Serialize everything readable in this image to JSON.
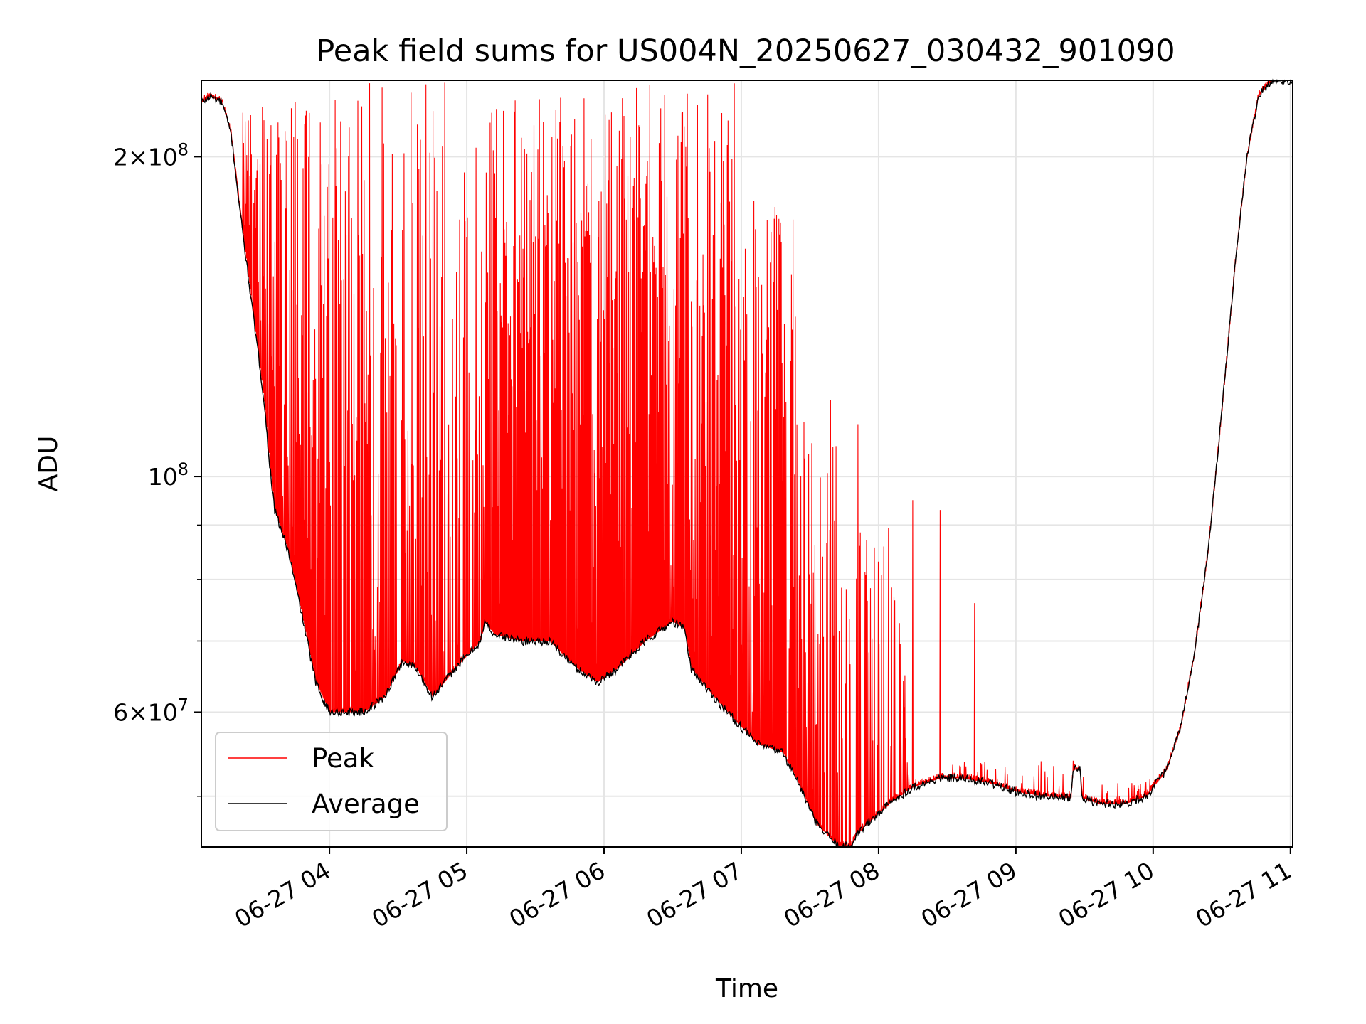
{
  "chart_data": {
    "type": "line",
    "title": "Peak field sums for US004N_20250627_030432_901090",
    "xlabel": "Time",
    "ylabel": "ADU",
    "y_scale": "log",
    "ylim": [
      44800000,
      236000000
    ],
    "xlim": [
      "2025-06-27 03:04",
      "2025-06-27 11:01"
    ],
    "x_tick_labels": [
      "06-27 04",
      "06-27 05",
      "06-27 06",
      "06-27 07",
      "06-27 08",
      "06-27 09",
      "06-27 10",
      "06-27 11"
    ],
    "x_ticks": [
      "2025-06-27 04:00",
      "2025-06-27 05:00",
      "2025-06-27 06:00",
      "2025-06-27 07:00",
      "2025-06-27 08:00",
      "2025-06-27 09:00",
      "2025-06-27 10:00",
      "2025-06-27 11:00"
    ],
    "y_major_ticks": [
      60000000,
      100000000,
      200000000
    ],
    "y_major_tick_base": [
      "6",
      "10",
      "2"
    ],
    "y_major_tick_exp": [
      "7",
      "8",
      "8"
    ],
    "y_major_tick_mult": [
      "×",
      "",
      "×"
    ],
    "y_minor_ticks": [
      50000000,
      70000000,
      80000000,
      90000000
    ],
    "grid": true,
    "legend": {
      "position": "lower-left",
      "entries": [
        "Peak",
        "Average"
      ]
    },
    "series": [
      {
        "name": "Average",
        "color": "#000000",
        "points": [
          [
            "2025-06-27 03:04",
            225000000
          ],
          [
            "2025-06-27 03:08",
            228000000
          ],
          [
            "2025-06-27 03:13",
            225000000
          ],
          [
            "2025-06-27 03:17",
            210000000
          ],
          [
            "2025-06-27 03:22",
            170000000
          ],
          [
            "2025-06-27 03:27",
            140000000
          ],
          [
            "2025-06-27 03:31",
            120000000
          ],
          [
            "2025-06-27 03:34",
            102000000
          ],
          [
            "2025-06-27 03:36",
            93000000
          ],
          [
            "2025-06-27 03:42",
            85000000
          ],
          [
            "2025-06-27 03:48",
            74000000
          ],
          [
            "2025-06-27 03:54",
            64000000
          ],
          [
            "2025-06-27 04:00",
            60000000
          ],
          [
            "2025-06-27 04:15",
            60000000
          ],
          [
            "2025-06-27 04:24",
            62000000
          ],
          [
            "2025-06-27 04:32",
            67000000
          ],
          [
            "2025-06-27 04:38",
            66000000
          ],
          [
            "2025-06-27 04:45",
            62000000
          ],
          [
            "2025-06-27 04:55",
            66000000
          ],
          [
            "2025-06-27 05:06",
            70000000
          ],
          [
            "2025-06-27 05:08",
            73000000
          ],
          [
            "2025-06-27 05:12",
            71000000
          ],
          [
            "2025-06-27 05:24",
            70000000
          ],
          [
            "2025-06-27 05:36",
            70000000
          ],
          [
            "2025-06-27 05:48",
            66000000
          ],
          [
            "2025-06-27 05:57",
            64000000
          ],
          [
            "2025-06-27 06:06",
            66000000
          ],
          [
            "2025-06-27 06:18",
            70000000
          ],
          [
            "2025-06-27 06:30",
            73000000
          ],
          [
            "2025-06-27 06:35",
            72000000
          ],
          [
            "2025-06-27 06:38",
            66000000
          ],
          [
            "2025-06-27 06:48",
            62000000
          ],
          [
            "2025-06-27 06:57",
            59000000
          ],
          [
            "2025-06-27 07:07",
            56000000
          ],
          [
            "2025-06-27 07:18",
            55000000
          ],
          [
            "2025-06-27 07:24",
            52000000
          ],
          [
            "2025-06-27 07:33",
            47000000
          ],
          [
            "2025-06-27 07:42",
            45000000
          ],
          [
            "2025-06-27 07:48",
            44800000
          ],
          [
            "2025-06-27 07:50",
            46000000
          ],
          [
            "2025-06-27 07:57",
            47500000
          ],
          [
            "2025-06-27 08:06",
            49500000
          ],
          [
            "2025-06-27 08:15",
            51000000
          ],
          [
            "2025-06-27 08:27",
            52000000
          ],
          [
            "2025-06-27 08:36",
            52000000
          ],
          [
            "2025-06-27 08:48",
            51500000
          ],
          [
            "2025-06-27 09:00",
            50500000
          ],
          [
            "2025-06-27 09:12",
            50000000
          ],
          [
            "2025-06-27 09:24",
            49800000
          ],
          [
            "2025-06-27 09:25",
            53000000
          ],
          [
            "2025-06-27 09:28",
            53000000
          ],
          [
            "2025-06-27 09:29",
            49800000
          ],
          [
            "2025-06-27 09:36",
            49200000
          ],
          [
            "2025-06-27 09:48",
            49200000
          ],
          [
            "2025-06-27 09:57",
            50000000
          ],
          [
            "2025-06-27 10:06",
            53000000
          ],
          [
            "2025-06-27 10:12",
            58000000
          ],
          [
            "2025-06-27 10:18",
            68000000
          ],
          [
            "2025-06-27 10:24",
            85000000
          ],
          [
            "2025-06-27 10:30",
            115000000
          ],
          [
            "2025-06-27 10:36",
            160000000
          ],
          [
            "2025-06-27 10:41",
            200000000
          ],
          [
            "2025-06-27 10:46",
            228000000
          ],
          [
            "2025-06-27 10:52",
            236000000
          ],
          [
            "2025-06-27 11:01",
            236000000
          ]
        ]
      },
      {
        "name": "Peak",
        "color": "#ff0000",
        "segments": [
          {
            "start": "2025-06-27 03:22",
            "end": "2025-06-27 03:58",
            "max": 230000000,
            "density": 0.85
          },
          {
            "start": "2025-06-27 03:58",
            "end": "2025-06-27 04:24",
            "max": 236000000,
            "density": 0.75
          },
          {
            "start": "2025-06-27 04:24",
            "end": "2025-06-27 04:48",
            "max": 236000000,
            "density": 0.7
          },
          {
            "start": "2025-06-27 04:48",
            "end": "2025-06-27 05:12",
            "max": 236000000,
            "density": 0.65
          },
          {
            "start": "2025-06-27 05:12",
            "end": "2025-06-27 05:48",
            "max": 236000000,
            "density": 0.95
          },
          {
            "start": "2025-06-27 05:48",
            "end": "2025-06-27 06:24",
            "max": 236000000,
            "density": 0.95
          },
          {
            "start": "2025-06-27 06:24",
            "end": "2025-06-27 06:57",
            "max": 236000000,
            "density": 0.95
          },
          {
            "start": "2025-06-27 06:57",
            "end": "2025-06-27 07:24",
            "max": 190000000,
            "density": 0.8
          },
          {
            "start": "2025-06-27 07:24",
            "end": "2025-06-27 07:42",
            "max": 115000000,
            "density": 0.55
          },
          {
            "start": "2025-06-27 07:42",
            "end": "2025-06-27 08:12",
            "max": 90000000,
            "density": 0.45
          },
          {
            "start": "2025-06-27 08:12",
            "end": "2025-06-27 09:36",
            "max": 54000000,
            "density": 0.15
          },
          {
            "start": "2025-06-27 09:36",
            "end": "2025-06-27 10:06",
            "max": 52000000,
            "density": 0.25
          }
        ],
        "spikes": [
          [
            "2025-06-27 08:15",
            95000000
          ],
          [
            "2025-06-27 08:27",
            93000000
          ],
          [
            "2025-06-27 08:42",
            76000000
          ],
          [
            "2025-06-27 07:51",
            112000000
          ],
          [
            "2025-06-27 07:39",
            118000000
          ],
          [
            "2025-06-27 09:25",
            54000000
          ]
        ]
      }
    ]
  }
}
